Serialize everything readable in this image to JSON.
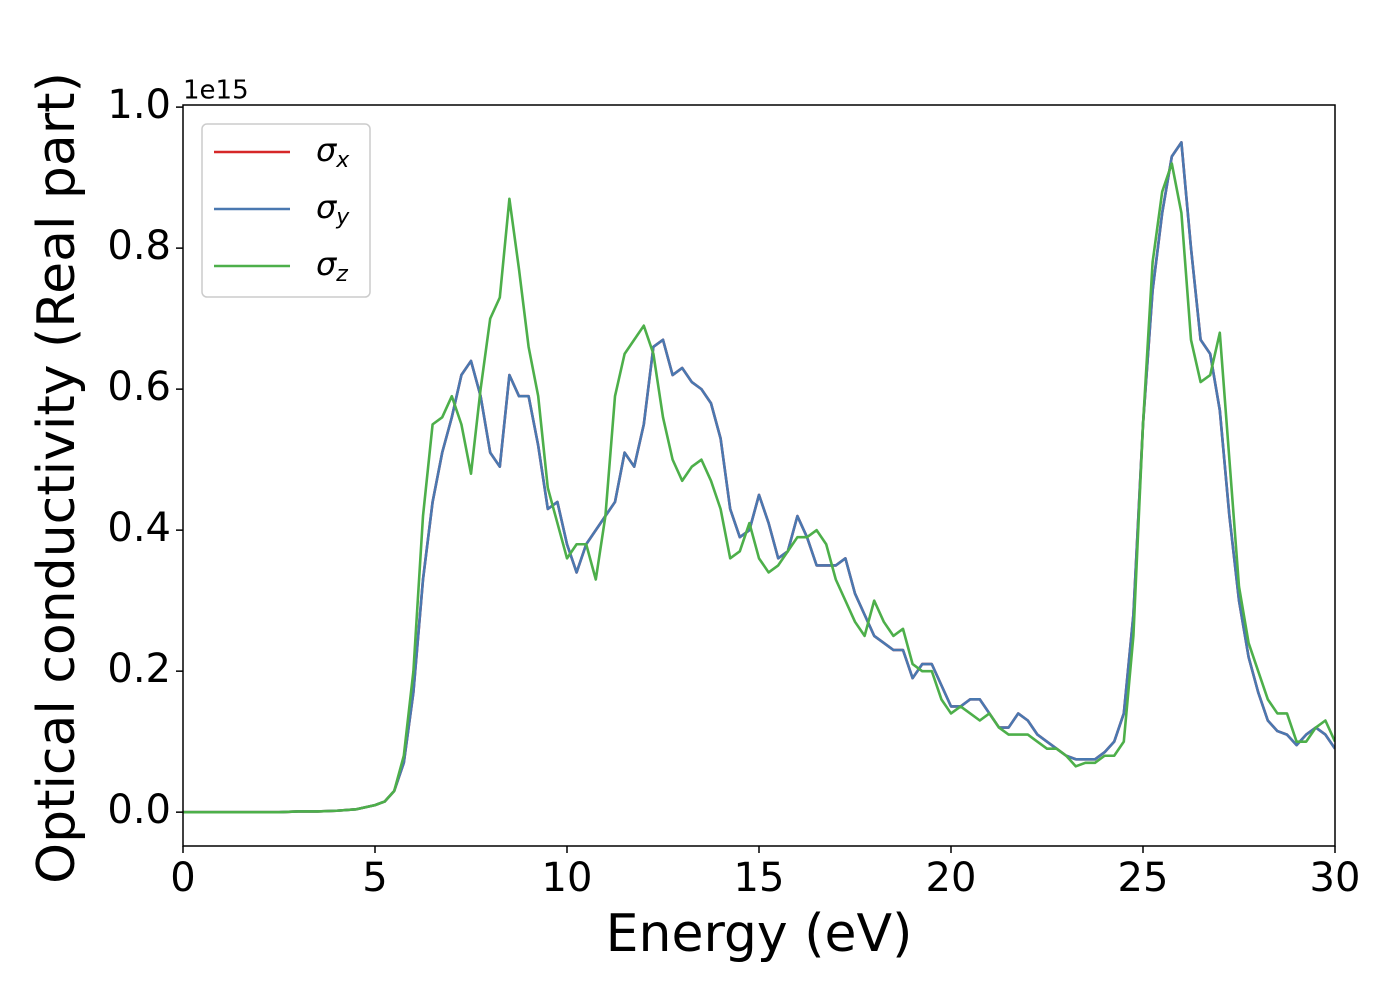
{
  "chart_data": {
    "type": "line",
    "xlabel": "Energy (eV)",
    "ylabel": "Optical conductivity (Real part)",
    "offset_text": "1e15",
    "x": [
      0,
      0.5,
      1,
      1.5,
      2,
      2.5,
      3,
      3.5,
      4,
      4.5,
      5,
      5.25,
      5.5,
      5.75,
      6,
      6.25,
      6.5,
      6.75,
      7,
      7.25,
      7.5,
      7.75,
      8,
      8.25,
      8.5,
      8.75,
      9,
      9.25,
      9.5,
      9.75,
      10,
      10.25,
      10.5,
      10.75,
      11,
      11.25,
      11.5,
      11.75,
      12,
      12.25,
      12.5,
      12.75,
      13,
      13.25,
      13.5,
      13.75,
      14,
      14.25,
      14.5,
      14.75,
      15,
      15.25,
      15.5,
      15.75,
      16,
      16.25,
      16.5,
      16.75,
      17,
      17.25,
      17.5,
      17.75,
      18,
      18.25,
      18.5,
      18.75,
      19,
      19.25,
      19.5,
      19.75,
      20,
      20.25,
      20.5,
      20.75,
      21,
      21.25,
      21.5,
      21.75,
      22,
      22.25,
      22.5,
      22.75,
      23,
      23.25,
      23.5,
      23.75,
      24,
      24.25,
      24.5,
      24.75,
      25,
      25.25,
      25.5,
      25.75,
      26,
      26.25,
      26.5,
      26.75,
      27,
      27.25,
      27.5,
      27.75,
      28,
      28.25,
      28.5,
      28.75,
      29,
      29.25,
      29.5,
      29.75,
      30
    ],
    "series": [
      {
        "name": "σx",
        "color": "#d62728",
        "values": [
          0,
          0,
          0,
          0,
          0,
          0,
          0.001,
          0.001,
          0.002,
          0.004,
          0.01,
          0.015,
          0.03,
          0.07,
          0.17,
          0.33,
          0.44,
          0.51,
          0.56,
          0.62,
          0.64,
          0.59,
          0.51,
          0.49,
          0.62,
          0.59,
          0.59,
          0.52,
          0.43,
          0.44,
          0.38,
          0.34,
          0.38,
          0.4,
          0.42,
          0.44,
          0.51,
          0.49,
          0.55,
          0.66,
          0.67,
          0.62,
          0.63,
          0.61,
          0.6,
          0.58,
          0.53,
          0.43,
          0.39,
          0.4,
          0.45,
          0.41,
          0.36,
          0.37,
          0.42,
          0.39,
          0.35,
          0.35,
          0.35,
          0.36,
          0.31,
          0.28,
          0.25,
          0.24,
          0.23,
          0.23,
          0.19,
          0.21,
          0.21,
          0.18,
          0.15,
          0.15,
          0.16,
          0.16,
          0.14,
          0.12,
          0.12,
          0.14,
          0.13,
          0.11,
          0.1,
          0.09,
          0.08,
          0.075,
          0.075,
          0.075,
          0.085,
          0.1,
          0.14,
          0.28,
          0.55,
          0.74,
          0.85,
          0.93,
          0.95,
          0.8,
          0.67,
          0.65,
          0.57,
          0.42,
          0.3,
          0.22,
          0.17,
          0.13,
          0.115,
          0.11,
          0.095,
          0.11,
          0.12,
          0.11,
          0.09
        ]
      },
      {
        "name": "σy",
        "color": "#4a78b0",
        "values": [
          0,
          0,
          0,
          0,
          0,
          0,
          0.001,
          0.001,
          0.002,
          0.004,
          0.01,
          0.015,
          0.03,
          0.07,
          0.17,
          0.33,
          0.44,
          0.51,
          0.56,
          0.62,
          0.64,
          0.59,
          0.51,
          0.49,
          0.62,
          0.59,
          0.59,
          0.52,
          0.43,
          0.44,
          0.38,
          0.34,
          0.38,
          0.4,
          0.42,
          0.44,
          0.51,
          0.49,
          0.55,
          0.66,
          0.67,
          0.62,
          0.63,
          0.61,
          0.6,
          0.58,
          0.53,
          0.43,
          0.39,
          0.4,
          0.45,
          0.41,
          0.36,
          0.37,
          0.42,
          0.39,
          0.35,
          0.35,
          0.35,
          0.36,
          0.31,
          0.28,
          0.25,
          0.24,
          0.23,
          0.23,
          0.19,
          0.21,
          0.21,
          0.18,
          0.15,
          0.15,
          0.16,
          0.16,
          0.14,
          0.12,
          0.12,
          0.14,
          0.13,
          0.11,
          0.1,
          0.09,
          0.08,
          0.075,
          0.075,
          0.075,
          0.085,
          0.1,
          0.14,
          0.28,
          0.55,
          0.74,
          0.85,
          0.93,
          0.95,
          0.8,
          0.67,
          0.65,
          0.57,
          0.42,
          0.3,
          0.22,
          0.17,
          0.13,
          0.115,
          0.11,
          0.095,
          0.11,
          0.12,
          0.11,
          0.09
        ]
      },
      {
        "name": "σz",
        "color": "#4daf4a",
        "values": [
          0,
          0,
          0,
          0,
          0,
          0,
          0.001,
          0.001,
          0.002,
          0.004,
          0.01,
          0.015,
          0.03,
          0.08,
          0.2,
          0.42,
          0.55,
          0.56,
          0.59,
          0.55,
          0.48,
          0.6,
          0.7,
          0.73,
          0.87,
          0.77,
          0.66,
          0.59,
          0.46,
          0.41,
          0.36,
          0.38,
          0.38,
          0.33,
          0.42,
          0.59,
          0.65,
          0.67,
          0.69,
          0.65,
          0.56,
          0.5,
          0.47,
          0.49,
          0.5,
          0.47,
          0.43,
          0.36,
          0.37,
          0.41,
          0.36,
          0.34,
          0.35,
          0.37,
          0.39,
          0.39,
          0.4,
          0.38,
          0.33,
          0.3,
          0.27,
          0.25,
          0.3,
          0.27,
          0.25,
          0.26,
          0.21,
          0.2,
          0.2,
          0.16,
          0.14,
          0.15,
          0.14,
          0.13,
          0.14,
          0.12,
          0.11,
          0.11,
          0.11,
          0.1,
          0.09,
          0.09,
          0.08,
          0.065,
          0.07,
          0.07,
          0.08,
          0.08,
          0.1,
          0.25,
          0.55,
          0.78,
          0.88,
          0.92,
          0.85,
          0.67,
          0.61,
          0.62,
          0.68,
          0.5,
          0.32,
          0.24,
          0.2,
          0.16,
          0.14,
          0.14,
          0.1,
          0.1,
          0.12,
          0.13,
          0.1
        ]
      }
    ],
    "xlim": [
      0,
      30
    ],
    "xticks": [
      0,
      5,
      10,
      15,
      20,
      25,
      30
    ],
    "ylim": [
      -0.048,
      1.003
    ],
    "yticks": [
      {
        "value": 0,
        "label": "0.0"
      },
      {
        "value": 0.2,
        "label": "0.2"
      },
      {
        "value": 0.4,
        "label": "0.4"
      },
      {
        "value": 0.6,
        "label": "0.6"
      },
      {
        "value": 0.8,
        "label": "0.8"
      },
      {
        "value": 1,
        "label": "1.0"
      }
    ],
    "legend": "upper left",
    "grid": false
  }
}
